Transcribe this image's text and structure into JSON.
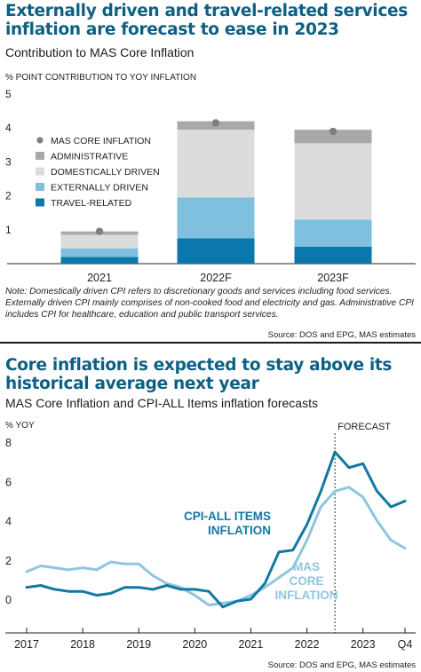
{
  "panel1": {
    "title": "Externally driven and travel-related services inflation are forecast to ease in 2023",
    "subtitle": "Contribution to MAS Core Inflation",
    "note": "Note: Domestically driven CPI refers to discretionary goods and services including food services. Externally driven CPI mainly comprises of non-cooked food and electricity and gas. Administrative CPI includes CPI for healthcare, education and public transport services.",
    "source": "Source: DOS and EPG, MAS estimates"
  },
  "panel2": {
    "title": "Core inflation is expected to stay above its historical average next year",
    "subtitle": "MAS Core Inflation and CPI-ALL Items inflation forecasts",
    "source": "Source: DOS and EPG, MAS estimates"
  },
  "colors": {
    "title": "#0d5f83",
    "travel": "#0a78ab",
    "external": "#7ec0dd",
    "domestic": "#dcdcdc",
    "administrative": "#a9a9a9",
    "core_marker": "#7f7f7f",
    "cpi_all_line": "#1278a3",
    "mas_core_line": "#8fc6df"
  },
  "chart_data": [
    {
      "type": "bar",
      "stacked": true,
      "ylabel": "% POINT CONTRIBUTION TO YOY INFLATION",
      "ylim": [
        0,
        5
      ],
      "yticks": [
        1,
        2,
        3,
        4,
        5
      ],
      "categories": [
        "2021",
        "2022F",
        "2023F"
      ],
      "series": [
        {
          "name": "TRAVEL-RELATED",
          "values": [
            0.2,
            0.75,
            0.5
          ]
        },
        {
          "name": "EXTERNALLY DRIVEN",
          "values": [
            0.25,
            1.2,
            0.8
          ]
        },
        {
          "name": "DOMESTICALLY DRIVEN",
          "values": [
            0.4,
            2.0,
            2.25
          ]
        },
        {
          "name": "ADMINISTRATIVE",
          "values": [
            0.1,
            0.25,
            0.4
          ]
        }
      ],
      "markers": {
        "name": "MAS CORE INFLATION",
        "values": [
          0.95,
          4.15,
          3.9
        ]
      },
      "legend": [
        "MAS CORE INFLATION",
        "ADMINISTRATIVE",
        "DOMESTICALLY DRIVEN",
        "EXTERNALLY DRIVEN",
        "TRAVEL-RELATED"
      ],
      "legend_position": "upper-left",
      "grid": false
    },
    {
      "type": "line",
      "ylabel": "% YOY",
      "ylim": [
        -1,
        8
      ],
      "yticks": [
        0,
        2,
        4,
        6,
        8
      ],
      "xlim": [
        2017,
        2023.75
      ],
      "xticks": [
        "2017",
        "2018",
        "2019",
        "2020",
        "2021",
        "2022",
        "2023",
        "Q4"
      ],
      "forecast_label": "FORECAST",
      "forecast_start": 2022.5,
      "series": [
        {
          "name": "CPI-ALL ITEMS INFLATION",
          "label_lines": [
            "CPI-ALL ITEMS",
            "INFLATION"
          ],
          "x": [
            2017,
            2017.25,
            2017.5,
            2017.75,
            2018,
            2018.25,
            2018.5,
            2018.75,
            2019,
            2019.25,
            2019.5,
            2019.75,
            2020,
            2020.25,
            2020.5,
            2020.75,
            2021,
            2021.25,
            2021.5,
            2021.75,
            2022,
            2022.25,
            2022.5,
            2022.75,
            2023,
            2023.25,
            2023.5,
            2023.75
          ],
          "y": [
            0.6,
            0.7,
            0.5,
            0.4,
            0.4,
            0.2,
            0.3,
            0.6,
            0.6,
            0.5,
            0.7,
            0.5,
            0.5,
            0.4,
            -0.4,
            -0.1,
            0.0,
            0.8,
            2.4,
            2.5,
            3.8,
            5.5,
            7.5,
            6.7,
            6.9,
            5.5,
            4.7,
            5.0
          ]
        },
        {
          "name": "MAS CORE INFLATION",
          "label_lines": [
            "MAS",
            "CORE",
            "INFLATION"
          ],
          "x": [
            2017,
            2017.25,
            2017.5,
            2017.75,
            2018,
            2018.25,
            2018.5,
            2018.75,
            2019,
            2019.25,
            2019.5,
            2019.75,
            2020,
            2020.25,
            2020.5,
            2020.75,
            2021,
            2021.25,
            2021.5,
            2021.75,
            2022,
            2022.25,
            2022.5,
            2022.75,
            2023,
            2023.25,
            2023.5,
            2023.75
          ],
          "y": [
            1.4,
            1.7,
            1.6,
            1.5,
            1.6,
            1.5,
            1.9,
            1.8,
            1.8,
            1.2,
            0.8,
            0.6,
            0.2,
            -0.3,
            -0.2,
            -0.1,
            0.2,
            0.6,
            1.1,
            1.6,
            3.0,
            4.7,
            5.5,
            5.7,
            5.2,
            4.0,
            3.0,
            2.6
          ]
        }
      ],
      "grid": false
    }
  ]
}
